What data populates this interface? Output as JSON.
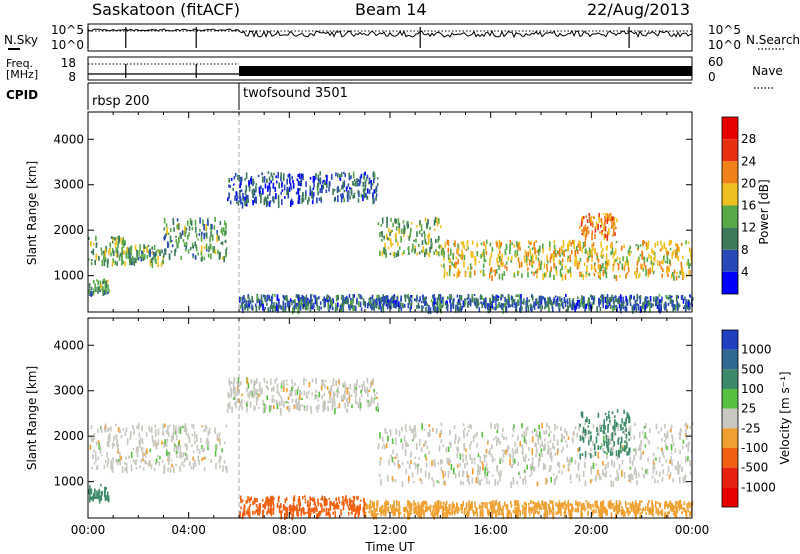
{
  "header": {
    "station": "Saskatoon (fitACF)",
    "beam": "Beam 14",
    "date": "22/Aug/2013"
  },
  "noise_panel": {
    "left_label": "N.Sky",
    "left_ticks": [
      "10^5",
      "10^0"
    ],
    "right_label": "N.Search",
    "right_ticks": [
      "10^5",
      "10^0"
    ]
  },
  "freq_panel": {
    "left_label_1": "Freq.",
    "left_label_2": "[MHz]",
    "left_ticks": [
      "18",
      "8"
    ],
    "right_label": "Nave",
    "right_ticks": [
      "60",
      "0"
    ]
  },
  "cpid": {
    "label": "CPID",
    "modes": [
      {
        "name": "rbsp 200",
        "start_hour": 0
      },
      {
        "name": "twofsound 3501",
        "start_hour": 6
      }
    ]
  },
  "chart_data": [
    {
      "type": "heatmap",
      "parameter": "Power",
      "ylabel": "Slant Range [km]",
      "xlabel": "",
      "ylim": [
        200,
        4600
      ],
      "yticks": [
        1000,
        2000,
        3000,
        4000
      ],
      "xlim_hours": [
        0,
        24
      ],
      "colorbar": {
        "label": "Power [dB]",
        "ticks": [
          "4",
          "8",
          "12",
          "16",
          "20",
          "24",
          "28"
        ],
        "colors": [
          "#0000ff",
          "#2848b8",
          "#3c7a5a",
          "#58a848",
          "#f0c020",
          "#f08018",
          "#e83010",
          "#e80000"
        ]
      },
      "echo_regions": [
        {
          "time_h": [
            0.0,
            1.5
          ],
          "range_km": [
            1300,
            1900
          ],
          "power_db": 16
        },
        {
          "time_h": [
            0.0,
            0.8
          ],
          "range_km": [
            650,
            950
          ],
          "power_db": 14
        },
        {
          "time_h": [
            1.5,
            3.0
          ],
          "range_km": [
            1300,
            1700
          ],
          "power_db": 14
        },
        {
          "time_h": [
            3.0,
            5.5
          ],
          "range_km": [
            1400,
            2300
          ],
          "power_db": 14
        },
        {
          "time_h": [
            5.5,
            9.0
          ],
          "range_km": [
            2600,
            3300
          ],
          "power_db": 8
        },
        {
          "time_h": [
            9.0,
            11.5
          ],
          "range_km": [
            2700,
            3300
          ],
          "power_db": 10
        },
        {
          "time_h": [
            11.5,
            14.0
          ],
          "range_km": [
            1500,
            2300
          ],
          "power_db": 16
        },
        {
          "time_h": [
            14.0,
            24.0
          ],
          "range_km": [
            1000,
            1800
          ],
          "power_db": 20
        },
        {
          "time_h": [
            19.5,
            21.0
          ],
          "range_km": [
            1900,
            2400
          ],
          "power_db": 24
        },
        {
          "time_h": [
            6.0,
            24.0
          ],
          "range_km": [
            300,
            600
          ],
          "power_db": 10
        }
      ]
    },
    {
      "type": "heatmap",
      "parameter": "Velocity",
      "ylabel": "Slant Range [km]",
      "xlabel": "Time UT",
      "ylim": [
        200,
        4600
      ],
      "yticks": [
        1000,
        2000,
        3000,
        4000
      ],
      "xticks": [
        "00:00",
        "04:00",
        "08:00",
        "12:00",
        "16:00",
        "20:00",
        "00:00"
      ],
      "xlim_hours": [
        0,
        24
      ],
      "colorbar": {
        "label": "Velocity [m s⁻¹]",
        "ticks": [
          "1000",
          "500",
          "100",
          "25",
          "-25",
          "-100",
          "-500",
          "-1000"
        ],
        "colors": [
          "#2040c0",
          "#306890",
          "#3c8a6a",
          "#58c040",
          "#c8c8c0",
          "#f0a030",
          "#f06010",
          "#e82010",
          "#e80000"
        ]
      },
      "echo_regions": [
        {
          "time_h": [
            0.0,
            5.5
          ],
          "range_km": [
            1300,
            2300
          ],
          "velocity": 0
        },
        {
          "time_h": [
            0.0,
            0.8
          ],
          "range_km": [
            650,
            950
          ],
          "velocity": 300
        },
        {
          "time_h": [
            5.5,
            11.5
          ],
          "range_km": [
            2600,
            3300
          ],
          "velocity": 0
        },
        {
          "time_h": [
            11.5,
            24.0
          ],
          "range_km": [
            1000,
            2300
          ],
          "velocity": 0
        },
        {
          "time_h": [
            19.5,
            21.5
          ],
          "range_km": [
            1600,
            2600
          ],
          "velocity": 300
        },
        {
          "time_h": [
            6.0,
            11.0
          ],
          "range_km": [
            300,
            700
          ],
          "velocity": -150
        },
        {
          "time_h": [
            11.0,
            24.0
          ],
          "range_km": [
            300,
            600
          ],
          "velocity": -60
        }
      ]
    }
  ]
}
